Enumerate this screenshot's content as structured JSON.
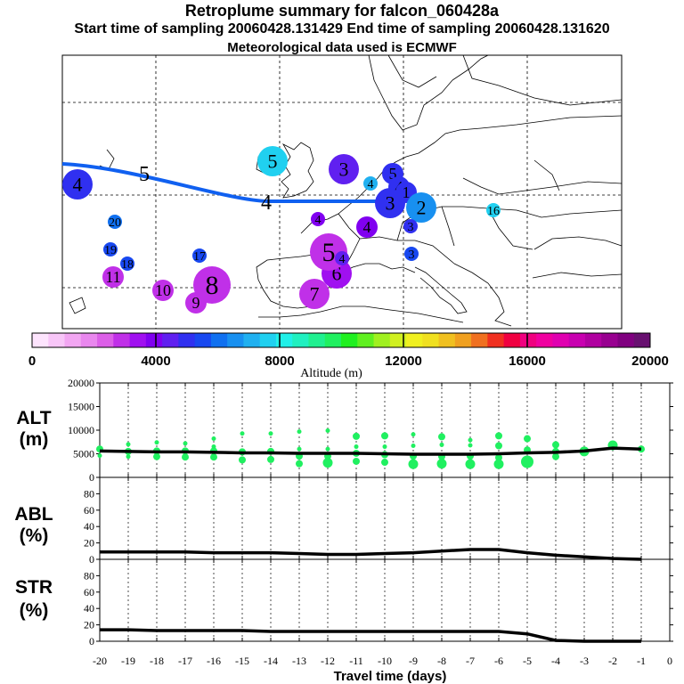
{
  "header": {
    "title": "Retroplume summary for falcon_060428a",
    "sampling": "Start time of sampling 20060428.131429     End time of sampling 20060428.131620",
    "met": "Meteorological data used is ECMWF"
  },
  "map": {
    "track_color": "#1060f0",
    "track_labels": [
      {
        "text": "5",
        "sz": "big"
      },
      {
        "text": "4",
        "sz": "big"
      },
      {
        "text": "3",
        "sz": "big"
      }
    ],
    "clusters": [
      {
        "label": "4",
        "alt_m": 5200,
        "size": 3
      },
      {
        "label": "20",
        "alt_m": 5800,
        "size": 1
      },
      {
        "label": "19",
        "alt_m": 5500,
        "size": 1
      },
      {
        "label": "18",
        "alt_m": 5500,
        "size": 1
      },
      {
        "label": "17",
        "alt_m": 5300,
        "size": 1
      },
      {
        "label": "11",
        "alt_m": 3000,
        "size": 2
      },
      {
        "label": "10",
        "alt_m": 3000,
        "size": 2
      },
      {
        "label": "9",
        "alt_m": 2800,
        "size": 2
      },
      {
        "label": "8",
        "alt_m": 3000,
        "size": 4
      },
      {
        "label": "7",
        "alt_m": 3000,
        "size": 3
      },
      {
        "label": "6",
        "alt_m": 3200,
        "size": 3
      },
      {
        "label": "5",
        "alt_m": 3000,
        "size": 4
      },
      {
        "label": "5",
        "alt_m": 7800,
        "size": 3
      },
      {
        "label": "4",
        "alt_m": 4400,
        "size": 1
      },
      {
        "label": "4",
        "alt_m": 3800,
        "size": 2
      },
      {
        "label": "4",
        "alt_m": 3800,
        "size": 1
      },
      {
        "label": "3",
        "alt_m": 4600,
        "size": 3
      },
      {
        "label": "4",
        "alt_m": 7000,
        "size": 1
      },
      {
        "label": "3",
        "alt_m": 4800,
        "size": 3
      },
      {
        "label": "5",
        "alt_m": 5200,
        "size": 2
      },
      {
        "label": "4",
        "alt_m": 4800,
        "size": 2
      },
      {
        "label": "1",
        "alt_m": 4800,
        "size": 2
      },
      {
        "label": "2",
        "alt_m": 6800,
        "size": 3
      },
      {
        "label": "3",
        "alt_m": 4800,
        "size": 1
      },
      {
        "label": "3",
        "alt_m": 5400,
        "size": 1
      },
      {
        "label": "16",
        "alt_m": 7600,
        "size": 1
      }
    ]
  },
  "colorbar": {
    "title": "Altitude  (m)",
    "ticks": [
      "0",
      "4000",
      "8000",
      "12000",
      "16000",
      "20000"
    ],
    "colors": [
      "#fde4fd",
      "#f8c6f8",
      "#f2a6f2",
      "#e987ee",
      "#dc5fe8",
      "#c030e8",
      "#a010f0",
      "#8000f0",
      "#6020f0",
      "#3030f0",
      "#1848f0",
      "#1070f0",
      "#1890f0",
      "#20b0f0",
      "#20d0f0",
      "#20f0e8",
      "#20f0c0",
      "#20f090",
      "#20f060",
      "#20f020",
      "#60f020",
      "#a0f020",
      "#d0f020",
      "#f0f020",
      "#f0e020",
      "#f0c020",
      "#f0a020",
      "#f07020",
      "#f03020",
      "#f00040",
      "#f00080",
      "#f000a0",
      "#e000b0",
      "#c800b0",
      "#b000a0",
      "#980090",
      "#800080",
      "#681070"
    ]
  },
  "chart_data": [
    {
      "type": "line",
      "panel": "ALT",
      "title": "ALT (m)",
      "ylabel_lines": [
        "ALT",
        "(m)"
      ],
      "ylim": [
        0,
        20000
      ],
      "yticks": [
        "0",
        "5000",
        "10000",
        "15000",
        "20000"
      ],
      "x": [
        -20,
        -19,
        -18,
        -17,
        -16,
        -15,
        -14,
        -13,
        -12,
        -11,
        -10,
        -9,
        -8,
        -7,
        -6,
        -5,
        -4,
        -3,
        -2,
        -1
      ],
      "values": [
        5600,
        5500,
        5400,
        5400,
        5300,
        5200,
        5200,
        5100,
        5100,
        5100,
        5000,
        4900,
        4900,
        4900,
        5000,
        5200,
        5300,
        5600,
        6200,
        6000
      ],
      "scatter": [
        {
          "x": -20,
          "points": [
            [
              6000,
              2
            ],
            [
              4600,
              1
            ]
          ]
        },
        {
          "x": -19,
          "points": [
            [
              7000,
              1
            ],
            [
              5500,
              2
            ],
            [
              4400,
              1
            ]
          ]
        },
        {
          "x": -18,
          "points": [
            [
              7400,
              1
            ],
            [
              5600,
              2
            ],
            [
              4400,
              2
            ]
          ]
        },
        {
          "x": -17,
          "points": [
            [
              7200,
              1
            ],
            [
              5600,
              2
            ],
            [
              4300,
              2
            ]
          ]
        },
        {
          "x": -16,
          "points": [
            [
              8200,
              1
            ],
            [
              6500,
              1
            ],
            [
              5600,
              2
            ],
            [
              4300,
              2
            ]
          ]
        },
        {
          "x": -15,
          "points": [
            [
              9300,
              1
            ],
            [
              5400,
              2
            ],
            [
              3700,
              2
            ]
          ]
        },
        {
          "x": -14,
          "points": [
            [
              9300,
              1
            ],
            [
              5500,
              2
            ],
            [
              3800,
              2
            ]
          ]
        },
        {
          "x": -13,
          "points": [
            [
              9700,
              1
            ],
            [
              6000,
              1
            ],
            [
              4500,
              2
            ],
            [
              2900,
              2
            ]
          ]
        },
        {
          "x": -12,
          "points": [
            [
              9900,
              1
            ],
            [
              6000,
              1
            ],
            [
              4500,
              2
            ],
            [
              3100,
              3
            ]
          ]
        },
        {
          "x": -11,
          "points": [
            [
              8700,
              2
            ],
            [
              6500,
              1
            ],
            [
              5100,
              2
            ],
            [
              3400,
              2
            ]
          ]
        },
        {
          "x": -10,
          "points": [
            [
              8800,
              2
            ],
            [
              6500,
              1
            ],
            [
              4800,
              2
            ],
            [
              3200,
              2
            ]
          ]
        },
        {
          "x": -9,
          "points": [
            [
              9100,
              1
            ],
            [
              6700,
              1
            ],
            [
              4500,
              2
            ],
            [
              2800,
              3
            ]
          ]
        },
        {
          "x": -8,
          "points": [
            [
              8600,
              2
            ],
            [
              6900,
              1
            ],
            [
              4400,
              2
            ],
            [
              2900,
              3
            ]
          ]
        },
        {
          "x": -7,
          "points": [
            [
              7900,
              1
            ],
            [
              6800,
              1
            ],
            [
              4500,
              2
            ],
            [
              2800,
              3
            ]
          ]
        },
        {
          "x": -6,
          "points": [
            [
              8800,
              2
            ],
            [
              6700,
              2
            ],
            [
              4200,
              2
            ],
            [
              2800,
              3
            ]
          ]
        },
        {
          "x": -5,
          "points": [
            [
              8200,
              2
            ],
            [
              5800,
              2
            ],
            [
              3300,
              4
            ]
          ]
        },
        {
          "x": -4,
          "points": [
            [
              6900,
              2
            ],
            [
              5500,
              2
            ],
            [
              4400,
              2
            ]
          ]
        },
        {
          "x": -3,
          "points": [
            [
              5500,
              3
            ]
          ]
        },
        {
          "x": -2,
          "points": [
            [
              6800,
              3
            ]
          ]
        },
        {
          "x": -1,
          "points": [
            [
              6000,
              2
            ]
          ]
        }
      ]
    },
    {
      "type": "line",
      "panel": "ABL",
      "title": "ABL (%)",
      "ylabel_lines": [
        "ABL",
        "(%)"
      ],
      "ylim": [
        0,
        100
      ],
      "yticks": [
        "0",
        "20",
        "40",
        "60",
        "80"
      ],
      "x": [
        -20,
        -19,
        -18,
        -17,
        -16,
        -15,
        -14,
        -13,
        -12,
        -11,
        -10,
        -9,
        -8,
        -7,
        -6,
        -5,
        -4,
        -3,
        -2,
        -1
      ],
      "values": [
        9,
        9,
        9,
        9,
        8,
        8,
        8,
        7,
        6,
        6,
        7,
        8,
        10,
        12,
        12,
        8,
        5,
        3,
        1,
        0
      ]
    },
    {
      "type": "line",
      "panel": "STR",
      "title": "STR (%)",
      "ylabel_lines": [
        "STR",
        "(%)"
      ],
      "ylim": [
        0,
        100
      ],
      "yticks": [
        "0",
        "20",
        "40",
        "60",
        "80"
      ],
      "x": [
        -20,
        -19,
        -18,
        -17,
        -16,
        -15,
        -14,
        -13,
        -12,
        -11,
        -10,
        -9,
        -8,
        -7,
        -6,
        -5,
        -4,
        -3,
        -2,
        -1
      ],
      "values": [
        14,
        14,
        13,
        13,
        13,
        13,
        12,
        12,
        12,
        12,
        12,
        12,
        12,
        12,
        12,
        9,
        1,
        0,
        0,
        0
      ],
      "xlabel": "Travel time (days)",
      "xticks": [
        "-20",
        "-19",
        "-18",
        "-17",
        "-16",
        "-15",
        "-14",
        "-13",
        "-12",
        "-11",
        "-10",
        "-9",
        "-8",
        "-7",
        "-6",
        "-5",
        "-4",
        "-3",
        "-2",
        "-1",
        "0"
      ]
    }
  ]
}
